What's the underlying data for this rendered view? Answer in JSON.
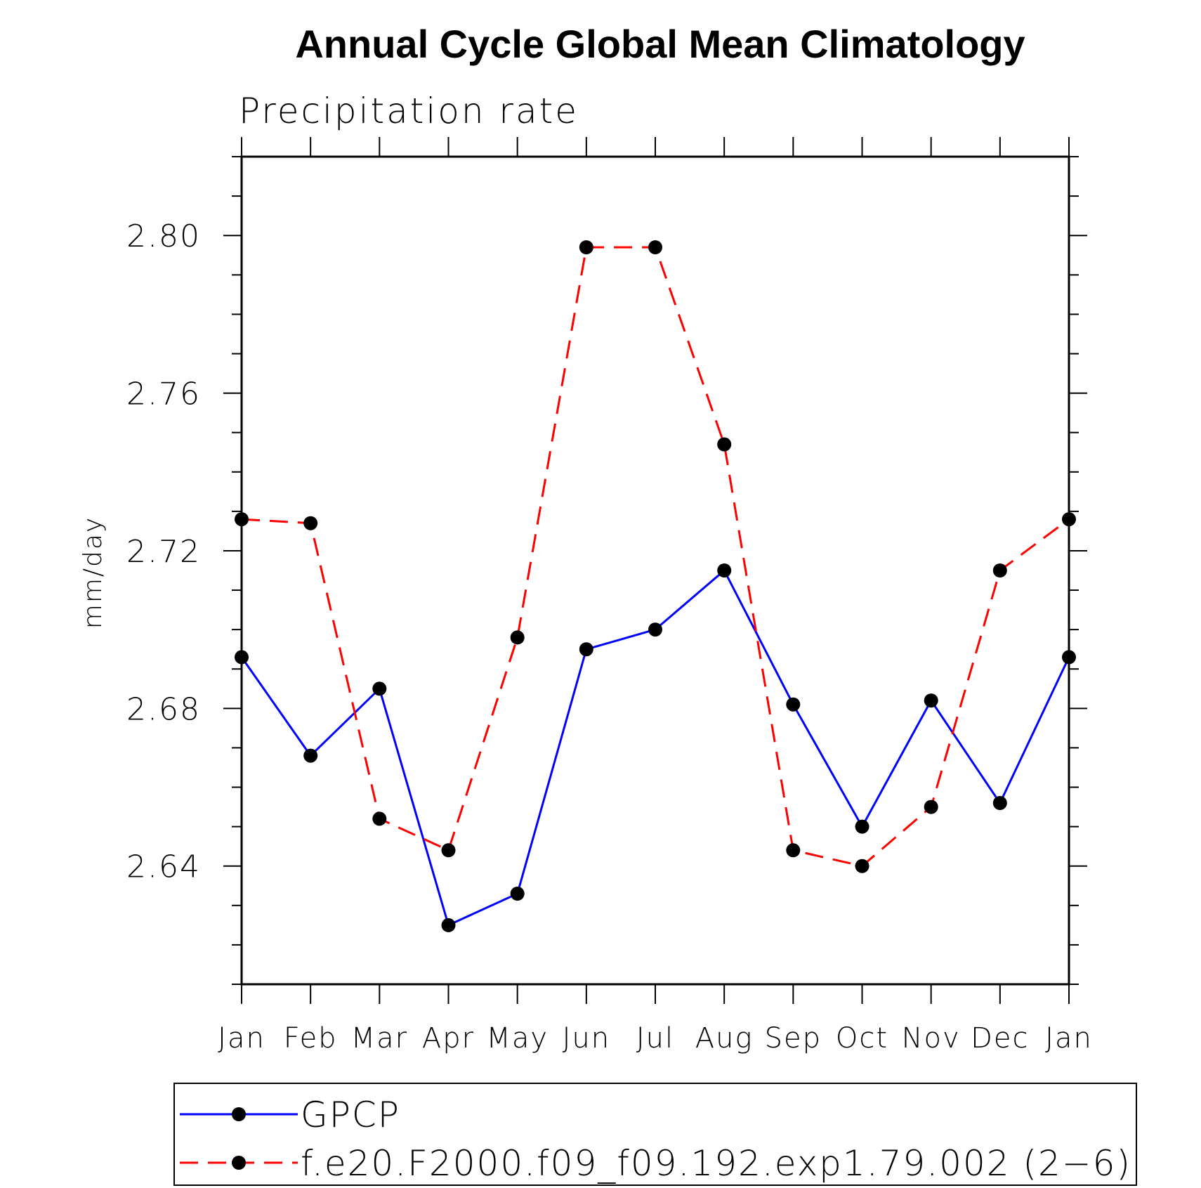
{
  "chart_data": {
    "type": "line",
    "title": "Annual Cycle Global Mean Climatology",
    "subtitle": "Precipitation rate",
    "ylabel": "mm/day",
    "xlabel": "",
    "categories": [
      "Jan",
      "Feb",
      "Mar",
      "Apr",
      "May",
      "Jun",
      "Jul",
      "Aug",
      "Sep",
      "Oct",
      "Nov",
      "Dec",
      "Jan"
    ],
    "ylim": [
      2.61,
      2.82
    ],
    "yticks": [
      2.64,
      2.68,
      2.72,
      2.76,
      2.8
    ],
    "ytick_labels": [
      "2.64",
      "2.68",
      "2.72",
      "2.76",
      "2.80"
    ],
    "yminor_step": 0.01,
    "grid": false,
    "legend_position": "bottom",
    "series": [
      {
        "name": "GPCP",
        "color": "#0000ff",
        "style": "solid",
        "marker": "filled-circle",
        "values": [
          2.693,
          2.668,
          2.685,
          2.625,
          2.633,
          2.695,
          2.7,
          2.715,
          2.681,
          2.65,
          2.682,
          2.656,
          2.693
        ]
      },
      {
        "name": "f.e20.F2000.f09_f09.192.exp1.79.002 (2−6)",
        "color": "#ff0000",
        "style": "dashed",
        "marker": "filled-circle",
        "values": [
          2.728,
          2.727,
          2.652,
          2.644,
          2.698,
          2.797,
          2.797,
          2.747,
          2.644,
          2.64,
          2.655,
          2.715,
          2.728
        ]
      }
    ]
  }
}
